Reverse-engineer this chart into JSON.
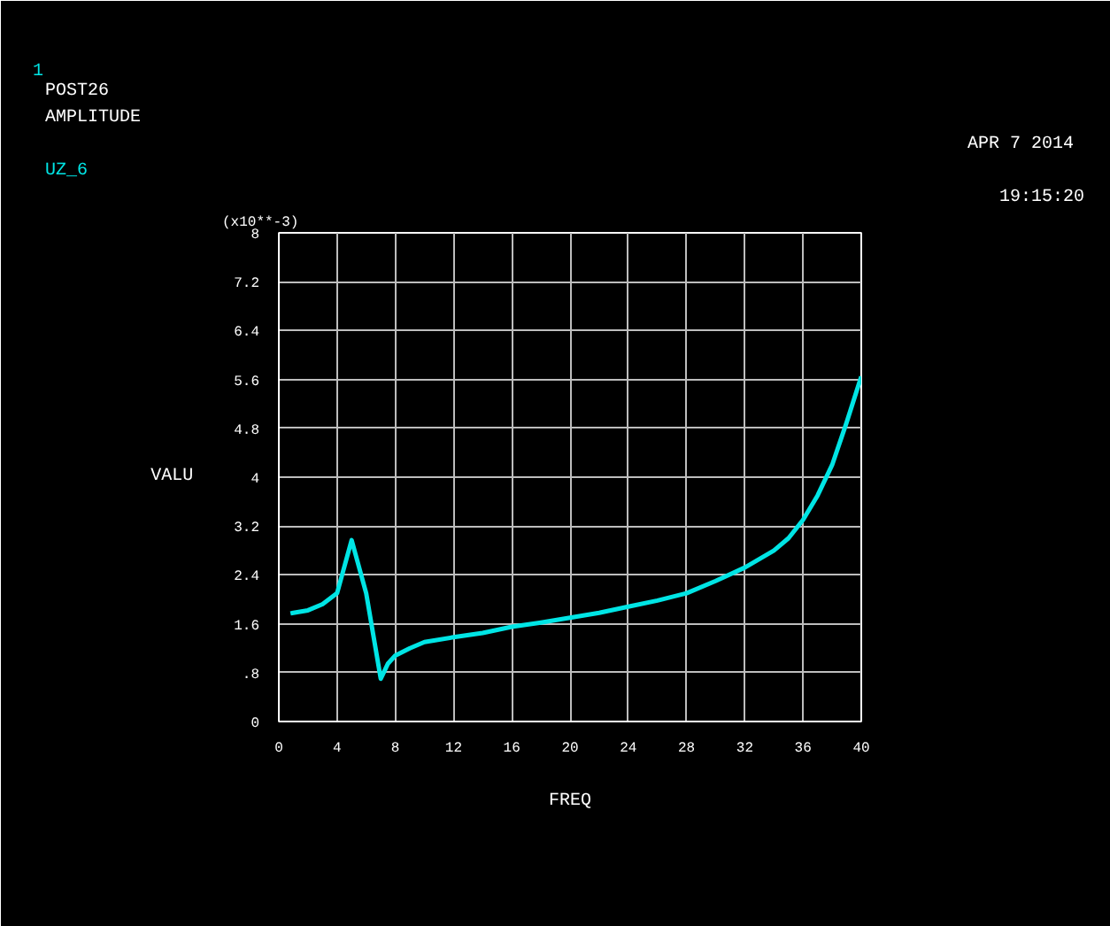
{
  "chart_data": {
    "type": "line",
    "title": "POST26",
    "subtitle": "AMPLITUDE",
    "xlabel": "FREQ",
    "ylabel": "VALU",
    "annotations": [
      "1",
      "APR  7 2014",
      "19:15:20",
      "(x10**-3)"
    ],
    "x": [
      0.8,
      1,
      2,
      3,
      4,
      5,
      6,
      7,
      7.5,
      8,
      9,
      10,
      12,
      14,
      16,
      18,
      20,
      22,
      24,
      26,
      28,
      30,
      32,
      34,
      35,
      36,
      37,
      38,
      39,
      40
    ],
    "series": [
      {
        "name": "UZ_6",
        "color": "#00e5e5",
        "values": [
          1.77,
          1.78,
          1.82,
          1.92,
          2.1,
          2.97,
          2.1,
          0.7,
          0.95,
          1.08,
          1.2,
          1.3,
          1.38,
          1.45,
          1.55,
          1.62,
          1.7,
          1.78,
          1.88,
          1.98,
          2.1,
          2.3,
          2.52,
          2.8,
          3.0,
          3.3,
          3.7,
          4.2,
          4.9,
          5.65
        ]
      }
    ],
    "xlim": [
      0,
      40
    ],
    "ylim": [
      0,
      8
    ],
    "xticks": [
      0,
      4,
      8,
      12,
      16,
      20,
      24,
      28,
      32,
      36,
      40
    ],
    "yticks": [
      0,
      {
        "value": 0.8,
        "label": ".8"
      },
      1.6,
      2.4,
      3.2,
      4,
      4.8,
      5.6,
      6.4,
      7.2,
      8
    ],
    "grid": true
  }
}
